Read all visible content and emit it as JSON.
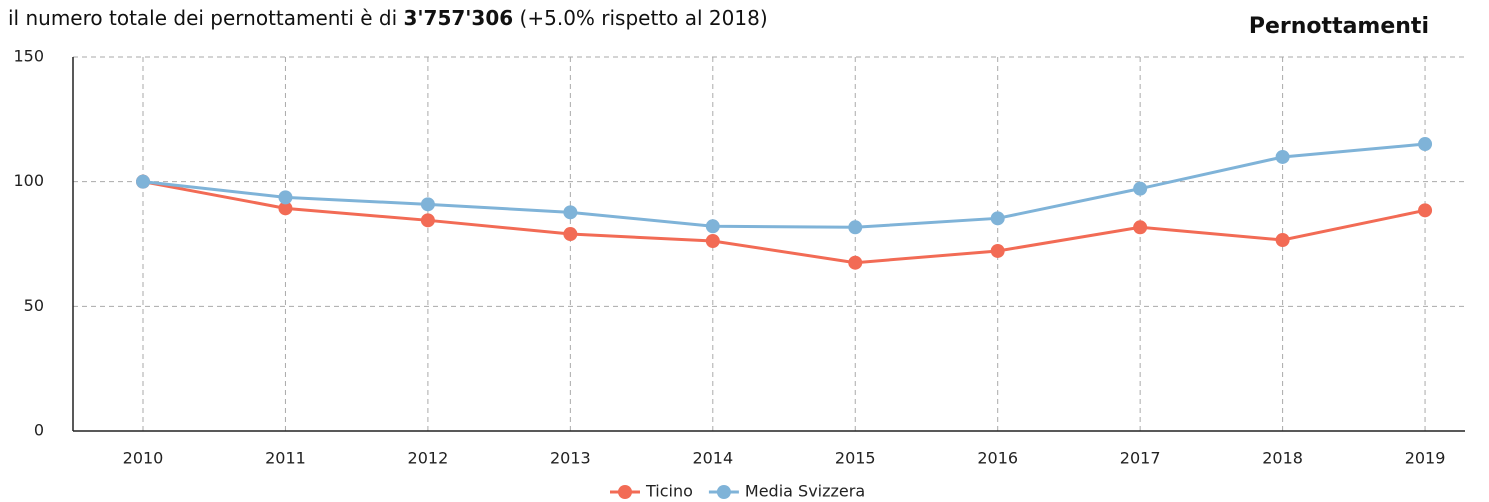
{
  "chart_data": {
    "type": "line",
    "title": "Pernottamenti",
    "subtitle_parts": [
      "il numero totale dei pernottamenti è di ",
      "3'757'306",
      " (+5.0% rispetto al 2018)"
    ],
    "categories": [
      "2010",
      "2011",
      "2012",
      "2013",
      "2014",
      "2015",
      "2016",
      "2017",
      "2018",
      "2019"
    ],
    "series": [
      {
        "name": "Ticino",
        "color": "#f26b55",
        "values": [
          100,
          89.3,
          84.5,
          79,
          76.2,
          67.5,
          72.2,
          81.7,
          76.6,
          88.5
        ]
      },
      {
        "name": "Media Svizzera",
        "color": "#7fb3d8",
        "values": [
          100,
          93.7,
          90.9,
          87.7,
          82.1,
          81.7,
          85.3,
          97.2,
          109.9,
          115.1
        ]
      }
    ],
    "ylim": [
      0,
      150
    ],
    "yticks": [
      0,
      50,
      100,
      150
    ],
    "grid": true,
    "legend": "bottom"
  }
}
